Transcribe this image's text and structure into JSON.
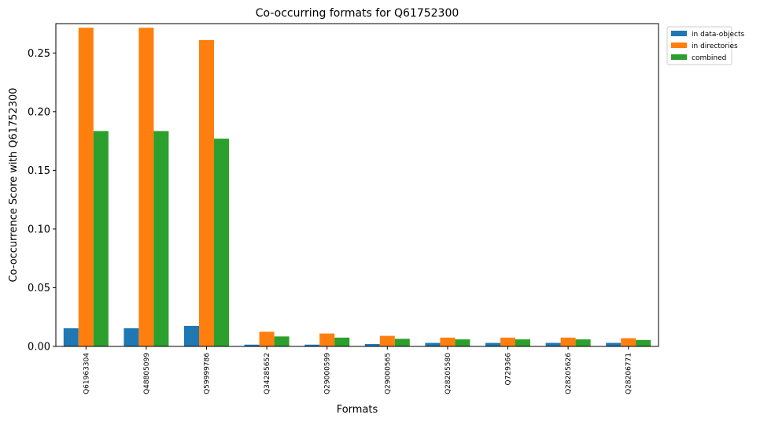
{
  "chart_data": {
    "type": "bar",
    "title": "Co-occurring formats for Q61752300",
    "xlabel": "Formats",
    "ylabel": "Co-occurrence Score with Q61752300",
    "categories": [
      "Q61963304",
      "Q48805099",
      "Q59999786",
      "Q34285652",
      "Q29000599",
      "Q29000565",
      "Q28205580",
      "Q729366",
      "Q28205626",
      "Q28206771"
    ],
    "series": [
      {
        "name": "in data-objects",
        "color": "#1f77b4",
        "values": [
          0.0155,
          0.0155,
          0.0175,
          0.0015,
          0.0015,
          0.002,
          0.003,
          0.003,
          0.003,
          0.003
        ]
      },
      {
        "name": "in directories",
        "color": "#ff7f0e",
        "values": [
          0.2715,
          0.2715,
          0.261,
          0.0125,
          0.011,
          0.009,
          0.0075,
          0.0075,
          0.0075,
          0.007
        ]
      },
      {
        "name": "combined",
        "color": "#2ca02c",
        "values": [
          0.1835,
          0.1835,
          0.177,
          0.0085,
          0.0075,
          0.0065,
          0.006,
          0.006,
          0.006,
          0.0055
        ]
      }
    ],
    "yticks": [
      "0.00",
      "0.05",
      "0.10",
      "0.15",
      "0.20",
      "0.25"
    ],
    "ylim": [
      0,
      0.275
    ],
    "grid": false,
    "legend_position": "outside-top-right"
  }
}
